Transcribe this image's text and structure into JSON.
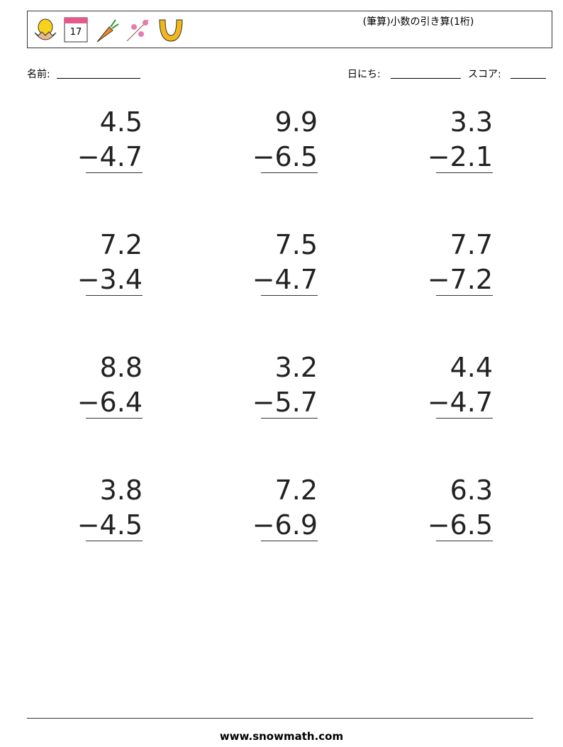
{
  "header": {
    "title": "(筆算)小数の引き算(1桁)"
  },
  "fields": {
    "name": "名前:",
    "date": "日にち:",
    "score": "スコア:"
  },
  "problems": [
    {
      "top": "4.5",
      "bottom": "−4.7"
    },
    {
      "top": "9.9",
      "bottom": "−6.5"
    },
    {
      "top": "3.3",
      "bottom": "−2.1"
    },
    {
      "top": "7.2",
      "bottom": "−3.4"
    },
    {
      "top": "7.5",
      "bottom": "−4.7"
    },
    {
      "top": "7.7",
      "bottom": "−7.2"
    },
    {
      "top": "8.8",
      "bottom": "−6.4"
    },
    {
      "top": "3.2",
      "bottom": "−5.7"
    },
    {
      "top": "4.4",
      "bottom": "−4.7"
    },
    {
      "top": "3.8",
      "bottom": "−4.5"
    },
    {
      "top": "7.2",
      "bottom": "−6.9"
    },
    {
      "top": "6.3",
      "bottom": "−6.5"
    }
  ],
  "footer": {
    "site": "www.snowmath.com"
  }
}
